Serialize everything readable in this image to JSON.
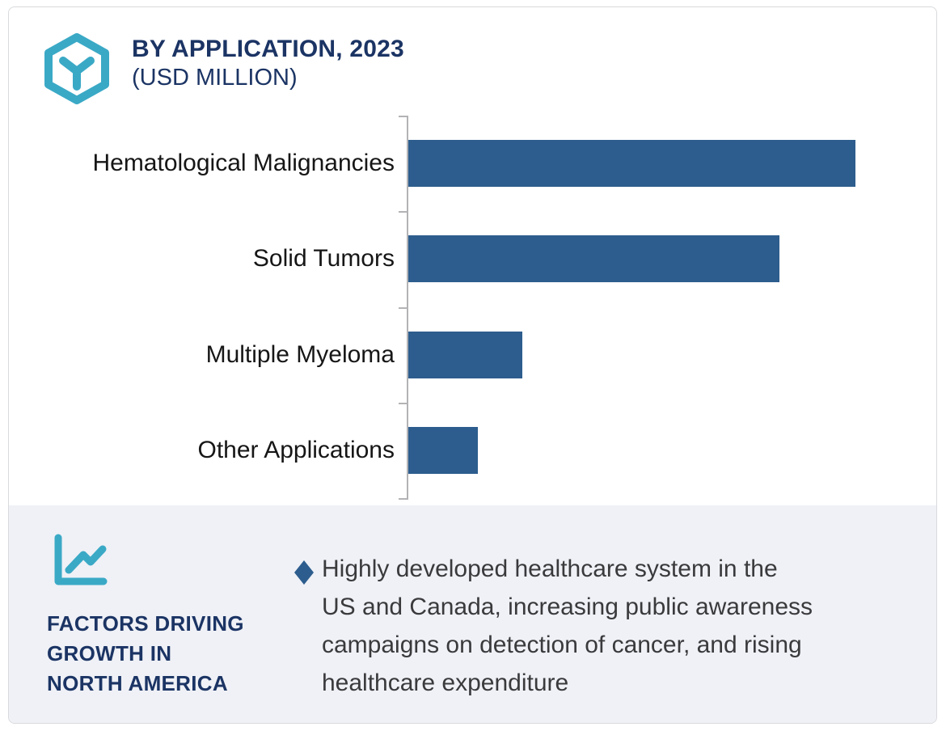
{
  "header": {
    "title": "BY APPLICATION, 2023",
    "subtitle": "(USD MILLION)"
  },
  "chart_data": {
    "type": "bar",
    "orientation": "horizontal",
    "title": "BY APPLICATION, 2023 (USD MILLION)",
    "categories": [
      "Hematological Malignancies",
      "Solid Tumors",
      "Multiple Myeloma",
      "Other Applications"
    ],
    "values": [
      100,
      83,
      25.5,
      15.5
    ],
    "value_note": "axis has no numeric tick labels; values estimated as percent of longest bar",
    "xlim": [
      0,
      118
    ],
    "grid": false,
    "legend": false,
    "value_labels_shown": false,
    "bar_color": "#2d5d8e",
    "axis_color": "#b3b3b6"
  },
  "factors": {
    "heading_lines": [
      "FACTORS DRIVING",
      "GROWTH IN",
      "NORTH AMERICA"
    ],
    "bullet": {
      "marker": "diamond",
      "lines": [
        "Highly developed healthcare system in the",
        "US and Canada, increasing public awareness",
        "campaigns on detection of cancer, and rising",
        "healthcare expenditure"
      ]
    }
  },
  "icons": {
    "logo": "hexagon-y-logo-icon",
    "panel": "line-chart-icon"
  },
  "colors": {
    "accent_teal": "#3aa9c6",
    "navy": "#1b3464",
    "bar_blue": "#2d5d8e",
    "panel_bg": "#eff1f6",
    "axis_gray": "#b3b3b6",
    "body_text": "#3a3a3c",
    "label_black": "#161616",
    "card_border": "#d9dadd"
  }
}
